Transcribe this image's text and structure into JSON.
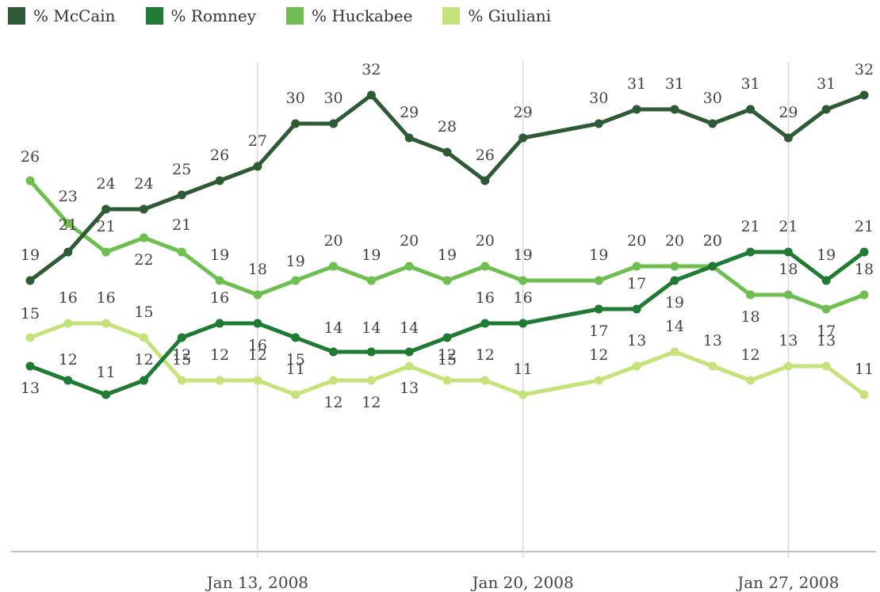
{
  "chart_data": {
    "type": "line",
    "x": [
      "2008-01-07",
      "2008-01-08",
      "2008-01-09",
      "2008-01-10",
      "2008-01-11",
      "2008-01-12",
      "2008-01-13",
      "2008-01-14",
      "2008-01-15",
      "2008-01-16",
      "2008-01-17",
      "2008-01-18",
      "2008-01-19",
      "2008-01-20",
      "2008-01-22",
      "2008-01-23",
      "2008-01-24",
      "2008-01-25",
      "2008-01-26",
      "2008-01-27",
      "2008-01-28",
      "2008-01-29"
    ],
    "x_ticks": [
      "Jan 13, 2008",
      "Jan 20, 2008",
      "Jan 27, 2008"
    ],
    "series": [
      {
        "name": "% McCain",
        "color": "#2f5a36",
        "values": [
          19,
          21,
          24,
          24,
          25,
          26,
          27,
          30,
          30,
          32,
          29,
          28,
          26,
          29,
          30,
          31,
          31,
          30,
          31,
          29,
          31,
          32
        ]
      },
      {
        "name": "% Romney",
        "color": "#1f7a34",
        "values": [
          13,
          12,
          11,
          12,
          15,
          16,
          16,
          15,
          14,
          14,
          14,
          15,
          16,
          16,
          17,
          17,
          19,
          20,
          21,
          21,
          19,
          21
        ]
      },
      {
        "name": "% Huckabee",
        "color": "#6ebf4f",
        "values": [
          26,
          23,
          21,
          22,
          21,
          19,
          18,
          19,
          20,
          19,
          20,
          19,
          20,
          19,
          19,
          20,
          20,
          20,
          18,
          18,
          17,
          18
        ]
      },
      {
        "name": "% Giuliani",
        "color": "#c6e27a",
        "values": [
          15,
          16,
          16,
          15,
          12,
          12,
          12,
          11,
          12,
          12,
          13,
          12,
          12,
          11,
          12,
          13,
          14,
          13,
          12,
          13,
          13,
          11
        ]
      }
    ],
    "grid": "vertical lines at tick dates",
    "legend": "top-left",
    "ylim": [
      0,
      35
    ]
  }
}
